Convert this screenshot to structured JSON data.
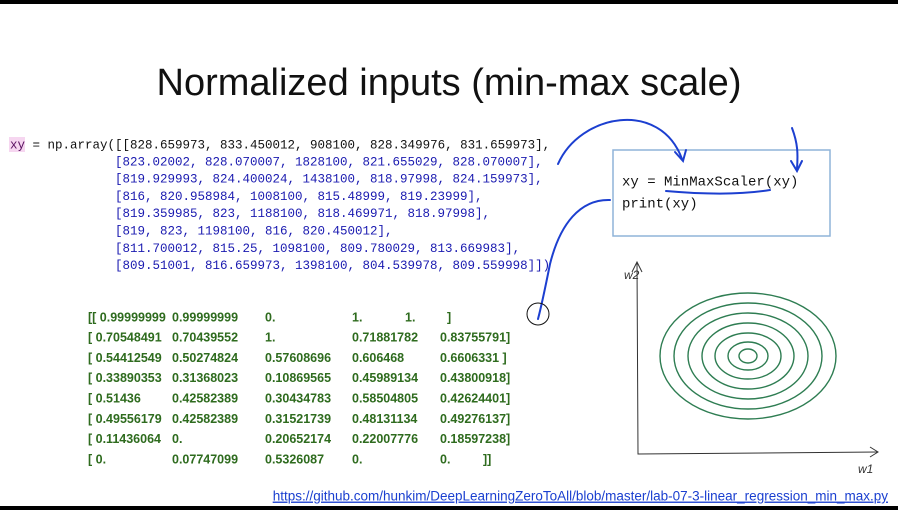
{
  "slide": {
    "title": "Normalized inputs (min-max scale)",
    "code": {
      "var": "xy",
      "first_line": " = np.array([[828.659973, 833.450012, 908100, 828.349976, 831.659973],",
      "lines": [
        "[823.02002, 828.070007, 1828100, 821.655029, 828.070007],",
        "[819.929993, 824.400024, 1438100, 818.97998, 824.159973],",
        "[816, 820.958984, 1008100, 815.48999, 819.23999],",
        "[819.359985, 823, 1188100, 818.469971, 818.97998],",
        "[819, 823, 1198100, 816, 820.450012],",
        "[811.700012, 815.25, 1098100, 809.780029, 813.669983],",
        "[809.51001, 816.659973, 1398100, 804.539978, 809.559998]])"
      ]
    },
    "output_rows": [
      [
        "[[ 0.99999999",
        "0.99999999",
        "0.",
        "1.",
        "1.",
        "]"
      ],
      [
        "[ 0.70548491",
        "0.70439552",
        "1.",
        "0.71881782",
        "0.83755791]"
      ],
      [
        "[ 0.54412549",
        "0.50274824",
        "0.57608696",
        "0.606468",
        "0.6606331 ]"
      ],
      [
        "[ 0.33890353",
        "0.31368023",
        "0.10869565",
        "0.45989134",
        "0.43800918]"
      ],
      [
        "[ 0.51436",
        "0.42582389",
        "0.30434783",
        "0.58504805",
        "0.42624401]"
      ],
      [
        "[ 0.49556179",
        "0.42582389",
        "0.31521739",
        "0.48131134",
        "0.49276137]"
      ],
      [
        "[ 0.11436064",
        "0.",
        "0.20652174",
        "0.22007776",
        "0.18597238]"
      ],
      [
        "[ 0.",
        "0.07747099",
        "0.5326087",
        "0.",
        "0.",
        "]]"
      ]
    ],
    "box_lines": [
      "xy = MinMaxScaler(xy)",
      "print(xy)"
    ],
    "sketch": {
      "y_label": "w2",
      "x_label": "w1"
    },
    "link": "https://github.com/hunkim/DeepLearningZeroToAll/blob/master/lab-07-3-linear_regression_min_max.py"
  }
}
